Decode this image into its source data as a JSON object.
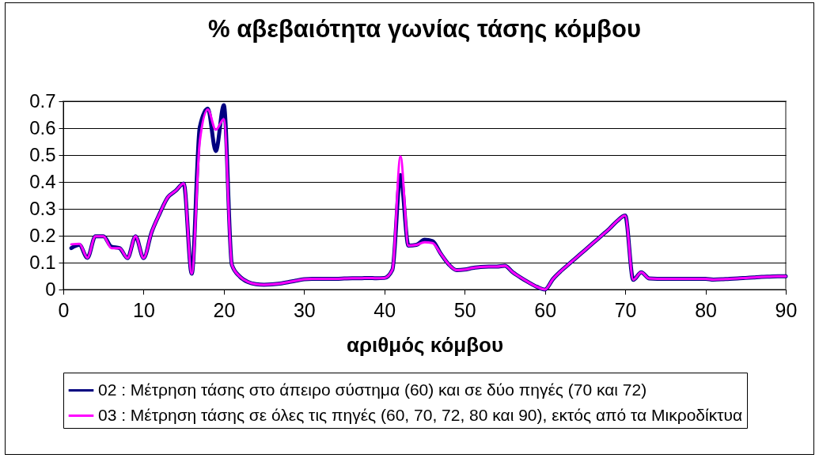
{
  "chart_data": {
    "type": "line",
    "title": "% αβεβαιότητα γωνίας τάσης κόμβου",
    "xlabel": "αριθμός κόμβου",
    "x": [
      1,
      2,
      3,
      4,
      5,
      6,
      7,
      8,
      9,
      10,
      11,
      12,
      13,
      14,
      15,
      16,
      17,
      18,
      19,
      20,
      21,
      22,
      23,
      24,
      25,
      26,
      27,
      28,
      29,
      30,
      31,
      32,
      33,
      34,
      35,
      36,
      37,
      38,
      39,
      40,
      41,
      42,
      43,
      44,
      45,
      46,
      47,
      48,
      49,
      50,
      51,
      52,
      53,
      54,
      55,
      56,
      57,
      58,
      59,
      60,
      61,
      62,
      63,
      64,
      65,
      66,
      67,
      68,
      69,
      70,
      71,
      72,
      73,
      74,
      75,
      76,
      77,
      78,
      79,
      80,
      81,
      82,
      83,
      84,
      85,
      86,
      87,
      88,
      89,
      90
    ],
    "series": [
      {
        "name": "02 : Μέτρηση τάσης στο άπειρο σύστημα (60) και σε δύο πηγές (70 και 72)",
        "color": "#000080",
        "values": [
          0.154,
          0.166,
          0.118,
          0.198,
          0.198,
          0.159,
          0.154,
          0.117,
          0.198,
          0.117,
          0.213,
          0.282,
          0.342,
          0.367,
          0.394,
          0.059,
          0.603,
          0.673,
          0.515,
          0.685,
          0.092,
          0.048,
          0.028,
          0.02,
          0.018,
          0.019,
          0.022,
          0.027,
          0.033,
          0.038,
          0.04,
          0.04,
          0.04,
          0.04,
          0.041,
          0.042,
          0.042,
          0.043,
          0.042,
          0.043,
          0.074,
          0.426,
          0.163,
          0.166,
          0.185,
          0.18,
          0.134,
          0.094,
          0.072,
          0.074,
          0.08,
          0.084,
          0.085,
          0.085,
          0.088,
          0.064,
          0.044,
          0.026,
          0.01,
          0,
          0.039,
          0.069,
          0.095,
          0.121,
          0.147,
          0.173,
          0.199,
          0.225,
          0.255,
          0.275,
          0.036,
          0.064,
          0.041,
          0.04,
          0.04,
          0.04,
          0.04,
          0.04,
          0.04,
          0.04,
          0.037,
          0.038,
          0.04,
          0.041,
          0.043,
          0.045,
          0.047,
          0.048,
          0.049,
          0.049
        ]
      },
      {
        "name": "03 : Μέτρηση τάσης σε όλες τις πηγές (60, 70, 72, 80 και 90), εκτός από τα Μικροδίκτυα",
        "color": "#ff00ff",
        "values": [
          0.168,
          0.17,
          0.118,
          0.198,
          0.198,
          0.154,
          0.154,
          0.117,
          0.198,
          0.117,
          0.213,
          0.282,
          0.342,
          0.367,
          0.394,
          0.059,
          0.55,
          0.669,
          0.594,
          0.633,
          0.092,
          0.048,
          0.028,
          0.02,
          0.018,
          0.019,
          0.022,
          0.027,
          0.033,
          0.038,
          0.04,
          0.04,
          0.04,
          0.04,
          0.041,
          0.042,
          0.042,
          0.043,
          0.042,
          0.043,
          0.074,
          0.495,
          0.163,
          0.166,
          0.176,
          0.173,
          0.134,
          0.094,
          0.072,
          0.074,
          0.08,
          0.084,
          0.085,
          0.085,
          0.088,
          0.064,
          0.044,
          0.026,
          0.01,
          0,
          0.039,
          0.069,
          0.095,
          0.121,
          0.147,
          0.173,
          0.199,
          0.225,
          0.255,
          0.275,
          0.036,
          0.064,
          0.041,
          0.04,
          0.04,
          0.04,
          0.04,
          0.04,
          0.04,
          0.04,
          0.037,
          0.038,
          0.04,
          0.041,
          0.043,
          0.045,
          0.047,
          0.048,
          0.049,
          0.049
        ]
      }
    ],
    "xlim": [
      0,
      90
    ],
    "xticks": [
      0,
      10,
      20,
      30,
      40,
      50,
      60,
      70,
      80,
      90
    ],
    "ylim": [
      0,
      0.7
    ],
    "yticks": [
      0,
      0.1,
      0.2,
      0.3,
      0.4,
      0.5,
      0.6,
      0.7
    ],
    "grid": "y",
    "legend": "bottom",
    "line_style": "solid",
    "marker": "none"
  }
}
